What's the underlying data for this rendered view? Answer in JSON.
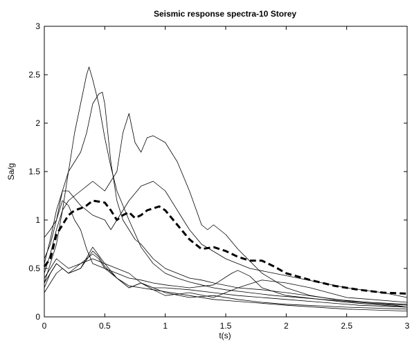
{
  "chart_data": {
    "type": "line",
    "title": "Seismic response spectra-10 Storey",
    "xlabel": "t(s)",
    "ylabel": "Sa/g",
    "xlim": [
      0,
      3
    ],
    "ylim": [
      0,
      3
    ],
    "xticks": [
      0,
      0.5,
      1,
      1.5,
      2,
      2.5,
      3
    ],
    "xtick_labels": [
      "0",
      "0.5",
      "1",
      "1.5",
      "2",
      "2.5",
      "3"
    ],
    "yticks": [
      0,
      0.5,
      1,
      1.5,
      2,
      2.5,
      3
    ],
    "ytick_labels": [
      "0",
      "0.5",
      "1",
      "1.5",
      "2",
      "2.5",
      "3"
    ],
    "grid": false,
    "legend": "none",
    "series": [
      {
        "style": "solid",
        "x": [
          0,
          0.05,
          0.1,
          0.15,
          0.2,
          0.25,
          0.3,
          0.35,
          0.37,
          0.4,
          0.45,
          0.5,
          0.55,
          0.6,
          0.7,
          0.8,
          0.9,
          1.0,
          1.1,
          1.2,
          1.3,
          1.4,
          1.5,
          1.7,
          1.9,
          2.1,
          2.3,
          2.5,
          2.7,
          2.9,
          3.0
        ],
        "y": [
          0.35,
          0.55,
          0.75,
          1.1,
          1.5,
          1.9,
          2.2,
          2.5,
          2.58,
          2.45,
          2.2,
          1.85,
          1.55,
          1.3,
          1.0,
          0.72,
          0.55,
          0.45,
          0.4,
          0.36,
          0.33,
          0.3,
          0.28,
          0.25,
          0.22,
          0.2,
          0.18,
          0.16,
          0.14,
          0.12,
          0.1
        ]
      },
      {
        "style": "solid",
        "x": [
          0,
          0.05,
          0.1,
          0.15,
          0.2,
          0.25,
          0.3,
          0.35,
          0.4,
          0.45,
          0.48,
          0.5,
          0.55,
          0.6,
          0.65,
          0.7,
          0.75,
          0.8,
          0.9,
          1.0,
          1.1,
          1.2,
          1.3,
          1.4,
          1.6,
          1.8,
          2.0,
          2.3,
          2.6,
          3.0
        ],
        "y": [
          0.6,
          0.75,
          1.0,
          1.3,
          1.5,
          1.6,
          1.7,
          1.9,
          2.2,
          2.3,
          2.32,
          2.2,
          1.6,
          1.2,
          1.0,
          0.9,
          0.8,
          0.75,
          0.6,
          0.5,
          0.45,
          0.4,
          0.38,
          0.35,
          0.3,
          0.28,
          0.25,
          0.2,
          0.15,
          0.12
        ]
      },
      {
        "style": "solid",
        "x": [
          0,
          0.05,
          0.1,
          0.15,
          0.2,
          0.3,
          0.4,
          0.5,
          0.6,
          0.65,
          0.7,
          0.75,
          0.8,
          0.85,
          0.9,
          1.0,
          1.1,
          1.2,
          1.3,
          1.35,
          1.4,
          1.5,
          1.6,
          1.8,
          2.0,
          2.2,
          2.4,
          2.7,
          3.0
        ],
        "y": [
          0.45,
          0.65,
          0.9,
          1.1,
          1.2,
          1.3,
          1.4,
          1.3,
          1.5,
          1.9,
          2.1,
          1.8,
          1.7,
          1.85,
          1.87,
          1.8,
          1.6,
          1.3,
          0.95,
          0.9,
          0.95,
          0.85,
          0.7,
          0.45,
          0.3,
          0.22,
          0.18,
          0.15,
          0.13
        ]
      },
      {
        "style": "solid",
        "x": [
          0,
          0.05,
          0.1,
          0.15,
          0.2,
          0.3,
          0.4,
          0.5,
          0.55,
          0.6,
          0.7,
          0.8,
          0.9,
          1.0,
          1.1,
          1.2,
          1.3,
          1.5,
          1.7,
          1.9,
          2.1,
          2.3,
          2.5,
          2.8,
          3.0
        ],
        "y": [
          0.55,
          0.8,
          1.1,
          1.3,
          1.3,
          1.15,
          1.05,
          1.0,
          0.9,
          1.0,
          1.2,
          1.35,
          1.4,
          1.3,
          1.1,
          0.9,
          0.75,
          0.6,
          0.5,
          0.45,
          0.4,
          0.35,
          0.3,
          0.25,
          0.2
        ]
      },
      {
        "style": "solid",
        "x": [
          0,
          0.05,
          0.1,
          0.15,
          0.2,
          0.25,
          0.3,
          0.35,
          0.4,
          0.5,
          0.6,
          0.7,
          0.8,
          0.9,
          1.0,
          1.2,
          1.4,
          1.55,
          1.6,
          1.7,
          1.8,
          2.0,
          2.5,
          3.0
        ],
        "y": [
          0.82,
          0.9,
          1.0,
          1.2,
          1.15,
          1.0,
          0.9,
          0.7,
          0.55,
          0.5,
          0.45,
          0.4,
          0.38,
          0.35,
          0.33,
          0.3,
          0.33,
          0.45,
          0.48,
          0.42,
          0.3,
          0.22,
          0.15,
          0.1
        ]
      },
      {
        "style": "solid",
        "x": [
          0,
          0.05,
          0.1,
          0.15,
          0.2,
          0.3,
          0.4,
          0.5,
          0.6,
          0.7,
          0.8,
          0.9,
          1.0,
          1.2,
          1.4,
          1.6,
          1.8,
          2.0,
          2.2,
          2.5,
          3.0
        ],
        "y": [
          0.3,
          0.45,
          0.55,
          0.5,
          0.45,
          0.5,
          0.72,
          0.55,
          0.4,
          0.3,
          0.35,
          0.28,
          0.22,
          0.25,
          0.2,
          0.3,
          0.38,
          0.35,
          0.3,
          0.2,
          0.15
        ]
      },
      {
        "style": "solid",
        "x": [
          0,
          0.05,
          0.1,
          0.15,
          0.2,
          0.3,
          0.4,
          0.45,
          0.5,
          0.6,
          0.7,
          0.8,
          0.9,
          1.0,
          1.2,
          1.4,
          1.6,
          1.8,
          2.0,
          2.5,
          3.0
        ],
        "y": [
          0.25,
          0.35,
          0.45,
          0.5,
          0.45,
          0.55,
          0.65,
          0.6,
          0.5,
          0.4,
          0.3,
          0.35,
          0.3,
          0.25,
          0.2,
          0.22,
          0.18,
          0.15,
          0.13,
          0.1,
          0.08
        ]
      },
      {
        "style": "solid",
        "x": [
          0,
          0.05,
          0.1,
          0.15,
          0.2,
          0.3,
          0.4,
          0.5,
          0.6,
          0.7,
          0.8,
          0.9,
          1.0,
          1.2,
          1.4,
          1.6,
          1.8,
          2.0,
          2.3,
          2.6,
          3.0
        ],
        "y": [
          0.4,
          0.5,
          0.6,
          0.55,
          0.5,
          0.55,
          0.6,
          0.55,
          0.5,
          0.45,
          0.35,
          0.3,
          0.3,
          0.28,
          0.25,
          0.22,
          0.2,
          0.18,
          0.15,
          0.12,
          0.1
        ]
      },
      {
        "style": "solid",
        "x": [
          0,
          0.05,
          0.1,
          0.15,
          0.2,
          0.3,
          0.4,
          0.45,
          0.5,
          0.6,
          0.7,
          0.8,
          0.9,
          1.0,
          1.2,
          1.4,
          1.6,
          1.8,
          2.0,
          2.5,
          3.0
        ],
        "y": [
          0.35,
          0.45,
          0.55,
          0.5,
          0.45,
          0.5,
          0.68,
          0.62,
          0.52,
          0.4,
          0.32,
          0.3,
          0.28,
          0.26,
          0.22,
          0.18,
          0.16,
          0.14,
          0.12,
          0.08,
          0.06
        ]
      },
      {
        "style": "dashed",
        "x": [
          0,
          0.05,
          0.1,
          0.15,
          0.2,
          0.25,
          0.3,
          0.35,
          0.4,
          0.5,
          0.55,
          0.6,
          0.65,
          0.7,
          0.75,
          0.8,
          0.85,
          0.9,
          0.95,
          1.0,
          1.1,
          1.2,
          1.3,
          1.4,
          1.5,
          1.6,
          1.7,
          1.8,
          1.9,
          2.0,
          2.2,
          2.4,
          2.6,
          2.8,
          3.0
        ],
        "y": [
          0.52,
          0.6,
          0.85,
          0.95,
          1.05,
          1.1,
          1.12,
          1.15,
          1.2,
          1.18,
          1.1,
          1.0,
          1.05,
          1.08,
          1.02,
          1.05,
          1.1,
          1.12,
          1.14,
          1.1,
          0.95,
          0.8,
          0.7,
          0.72,
          0.68,
          0.62,
          0.58,
          0.58,
          0.52,
          0.45,
          0.38,
          0.32,
          0.28,
          0.25,
          0.24
        ]
      }
    ]
  }
}
